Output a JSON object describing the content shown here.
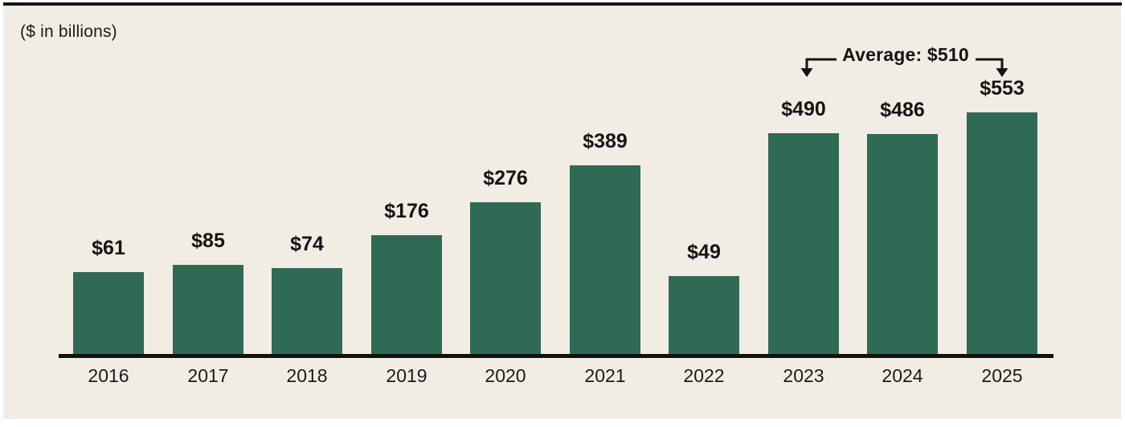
{
  "panel": {
    "units_label": "($ in billions)"
  },
  "annotation": {
    "label": "Average: $510",
    "average_value": 510,
    "points_to": [
      "2023",
      "2025"
    ]
  },
  "chart_data": {
    "type": "bar",
    "title": "",
    "xlabel": "",
    "ylabel": "($ in billions)",
    "categories": [
      "2016",
      "2017",
      "2018",
      "2019",
      "2020",
      "2021",
      "2022",
      "2023",
      "2024",
      "2025"
    ],
    "values": [
      61,
      85,
      74,
      176,
      276,
      389,
      49,
      490,
      486,
      553
    ],
    "value_labels": [
      "$61",
      "$85",
      "$74",
      "$176",
      "$276",
      "$389",
      "$49",
      "$490",
      "$486",
      "$553"
    ],
    "value_prefix": "$",
    "annotation": "Average: $510",
    "legend": "none",
    "gridlines": "off",
    "axis": "bottom baseline only, no tick marks, no y-axis",
    "colors": {
      "bar": "#2f6a55",
      "panel_background": "#f2ede4",
      "text": "#141414",
      "axis": "#111111",
      "top_rule": "#141414"
    }
  }
}
